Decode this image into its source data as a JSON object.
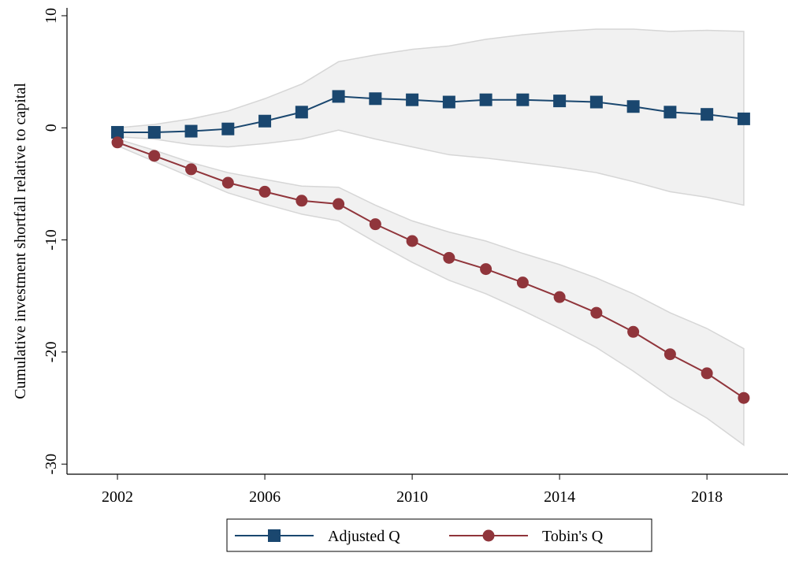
{
  "chart_data": {
    "type": "line",
    "y_label": "Cumulative investment shortfall relative to capital",
    "x": [
      2002,
      2003,
      2004,
      2005,
      2006,
      2007,
      2008,
      2009,
      2010,
      2011,
      2012,
      2013,
      2014,
      2015,
      2016,
      2017,
      2018,
      2019
    ],
    "xlim": [
      2000.63,
      2020.2
    ],
    "xticks": [
      2002,
      2006,
      2010,
      2014,
      2018
    ],
    "ylim": [
      -30.9,
      10.7
    ],
    "yticks": [
      -30,
      -20,
      -10,
      0,
      10
    ],
    "legend": "bottom",
    "band_color": "#ececec",
    "series": [
      {
        "name": "Adjusted Q",
        "color": "#1a476f",
        "marker": "square",
        "values": [
          -0.4,
          -0.4,
          -0.3,
          -0.1,
          0.6,
          1.4,
          2.8,
          2.6,
          2.5,
          2.3,
          2.5,
          2.5,
          2.4,
          2.3,
          1.9,
          1.4,
          1.2,
          0.8
        ],
        "upper": [
          0,
          0.3,
          0.8,
          1.5,
          2.6,
          3.9,
          5.9,
          6.5,
          7.0,
          7.3,
          7.9,
          8.3,
          8.6,
          8.8,
          8.8,
          8.6,
          8.7,
          8.6
        ],
        "lower": [
          -0.8,
          -1.0,
          -1.5,
          -1.7,
          -1.4,
          -1.0,
          -0.2,
          -1.0,
          -1.7,
          -2.4,
          -2.7,
          -3.1,
          -3.5,
          -4.0,
          -4.8,
          -5.7,
          -6.2,
          -6.9
        ]
      },
      {
        "name": "Tobin's Q",
        "color": "#90353b",
        "marker": "circle",
        "values": [
          -1.3,
          -2.5,
          -3.7,
          -4.9,
          -5.7,
          -6.5,
          -6.8,
          -8.6,
          -10.1,
          -11.6,
          -12.6,
          -13.8,
          -15.1,
          -16.5,
          -18.2,
          -20.2,
          -21.9,
          -24.1
        ],
        "upper": [
          -1.0,
          -2.0,
          -3.1,
          -4.0,
          -4.6,
          -5.2,
          -5.3,
          -6.9,
          -8.3,
          -9.3,
          -10.1,
          -11.2,
          -12.2,
          -13.4,
          -14.8,
          -16.5,
          -17.9,
          -19.7
        ],
        "lower": [
          -1.6,
          -3.0,
          -4.4,
          -5.8,
          -6.8,
          -7.7,
          -8.3,
          -10.2,
          -12.0,
          -13.6,
          -14.8,
          -16.3,
          -17.9,
          -19.6,
          -21.7,
          -24.0,
          -25.9,
          -28.3
        ]
      }
    ]
  }
}
